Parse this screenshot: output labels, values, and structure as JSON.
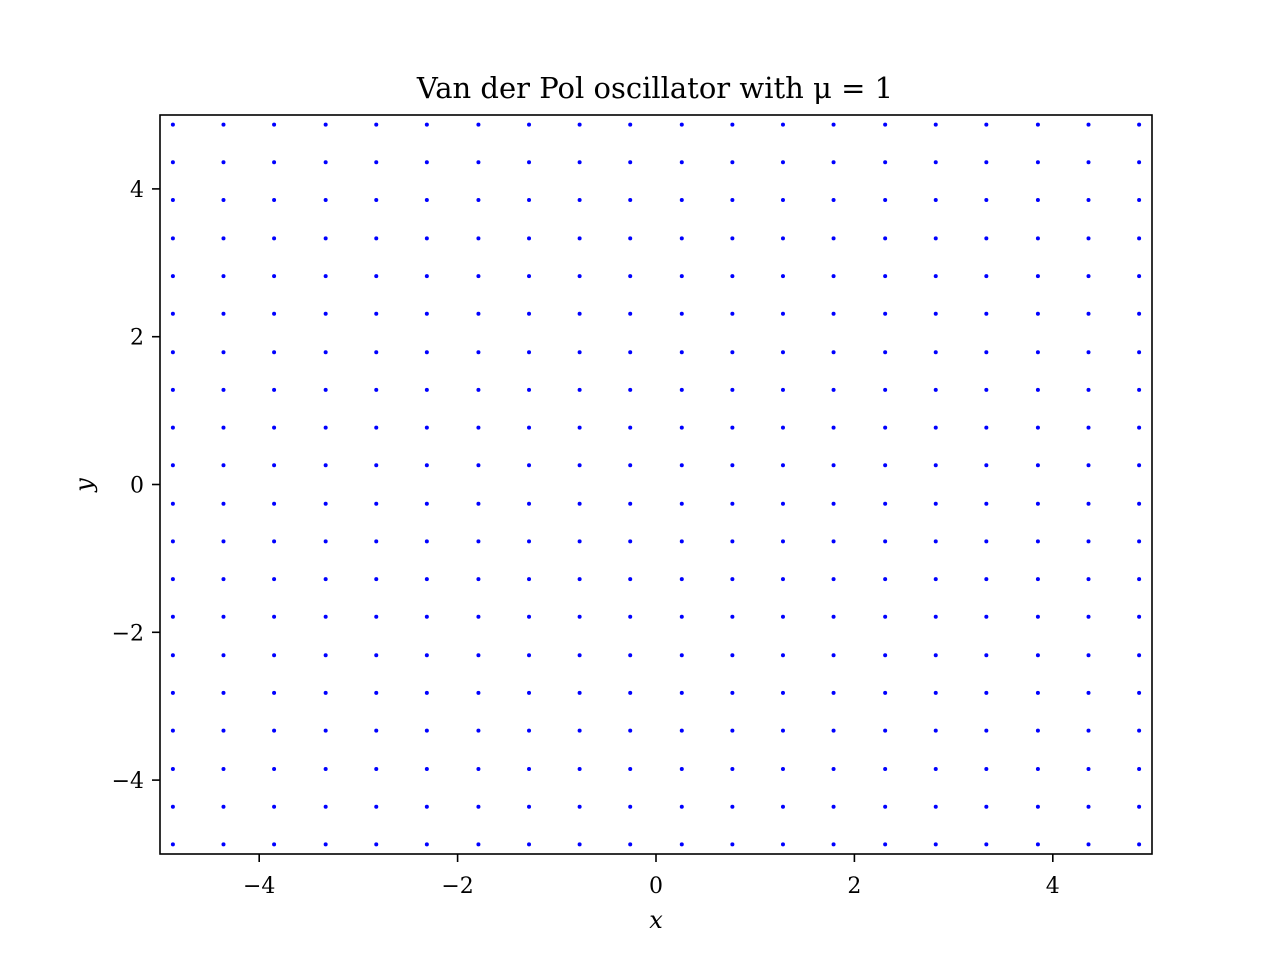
{
  "chart_data": {
    "type": "scatter",
    "title": "Van der Pol oscillator with μ = 1",
    "xlabel": "x",
    "ylabel": "y",
    "xlim": [
      -5,
      5
    ],
    "ylim": [
      -5,
      5
    ],
    "xticks": [
      -4,
      -2,
      0,
      2,
      4
    ],
    "yticks": [
      -4,
      -2,
      0,
      2,
      4
    ],
    "xtick_labels": [
      "−4",
      "−2",
      "0",
      "2",
      "4"
    ],
    "ytick_labels": [
      "−4",
      "−2",
      "0",
      "2",
      "4"
    ],
    "grid": false,
    "marker_color": "#0000ff",
    "points_description_grid": {
      "x": [
        -4.87,
        -4.36,
        -3.85,
        -3.33,
        -2.82,
        -2.31,
        -1.79,
        -1.28,
        -0.77,
        -0.26,
        0.26,
        0.77,
        1.28,
        1.79,
        2.31,
        2.82,
        3.33,
        3.85,
        4.36,
        4.87
      ],
      "y": [
        -4.87,
        -4.36,
        -3.85,
        -3.33,
        -2.82,
        -2.31,
        -1.79,
        -1.28,
        -0.77,
        -0.26,
        0.26,
        0.77,
        1.28,
        1.79,
        2.31,
        2.82,
        3.33,
        3.85,
        4.36,
        4.87
      ]
    }
  }
}
